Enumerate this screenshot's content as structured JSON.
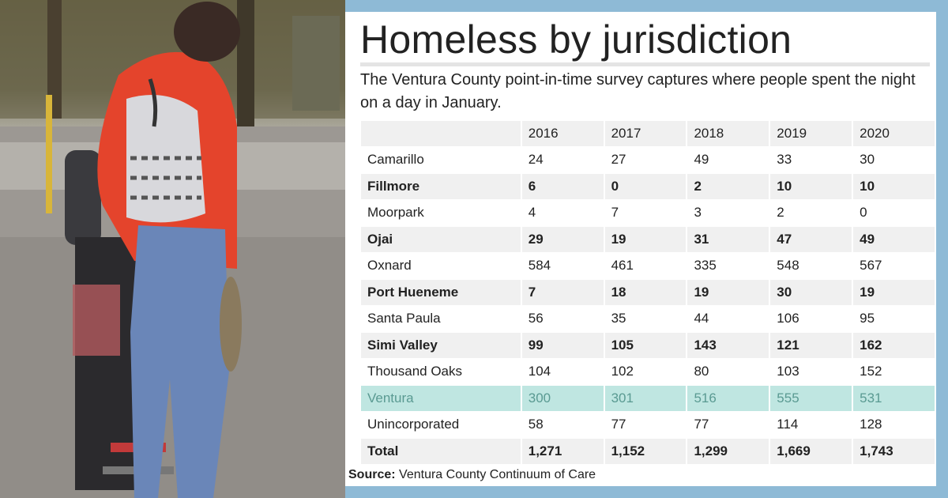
{
  "panel": {
    "title": "Homeless by jurisdiction",
    "subtitle": "The Ventura County point-in-time survey captures where people spent the night on a day in January.",
    "source_label": "Source:",
    "source_text": "Ventura County Continuum of Care"
  },
  "colors": {
    "background": "#8ebad6",
    "row_shade": "#f0f0f0",
    "highlight_row": "#bfe6e1",
    "highlight_text": "#5a9a92"
  },
  "chart_data": {
    "type": "table",
    "columns": [
      "",
      "2016",
      "2017",
      "2018",
      "2019",
      "2020"
    ],
    "rows": [
      {
        "name": "Camarillo",
        "values": [
          "24",
          "27",
          "49",
          "33",
          "30"
        ],
        "style": "plain"
      },
      {
        "name": "Fillmore",
        "values": [
          "6",
          "0",
          "2",
          "10",
          "10"
        ],
        "style": "shade"
      },
      {
        "name": "Moorpark",
        "values": [
          "4",
          "7",
          "3",
          "2",
          "0"
        ],
        "style": "plain"
      },
      {
        "name": "Ojai",
        "values": [
          "29",
          "19",
          "31",
          "47",
          "49"
        ],
        "style": "shade"
      },
      {
        "name": "Oxnard",
        "values": [
          "584",
          "461",
          "335",
          "548",
          "567"
        ],
        "style": "plain"
      },
      {
        "name": "Port Hueneme",
        "values": [
          "7",
          "18",
          "19",
          "30",
          "19"
        ],
        "style": "shade"
      },
      {
        "name": "Santa Paula",
        "values": [
          "56",
          "35",
          "44",
          "106",
          "95"
        ],
        "style": "plain"
      },
      {
        "name": "Simi Valley",
        "values": [
          "99",
          "105",
          "143",
          "121",
          "162"
        ],
        "style": "shade"
      },
      {
        "name": "Thousand Oaks",
        "values": [
          "104",
          "102",
          "80",
          "103",
          "152"
        ],
        "style": "plain"
      },
      {
        "name": "Ventura",
        "values": [
          "300",
          "301",
          "516",
          "555",
          "531"
        ],
        "style": "hl"
      },
      {
        "name": "Unincorporated",
        "values": [
          "58",
          "77",
          "77",
          "114",
          "128"
        ],
        "style": "plain"
      },
      {
        "name": "Total",
        "values": [
          "1,271",
          "1,152",
          "1,299",
          "1,669",
          "1,743"
        ],
        "style": "shade"
      }
    ]
  }
}
